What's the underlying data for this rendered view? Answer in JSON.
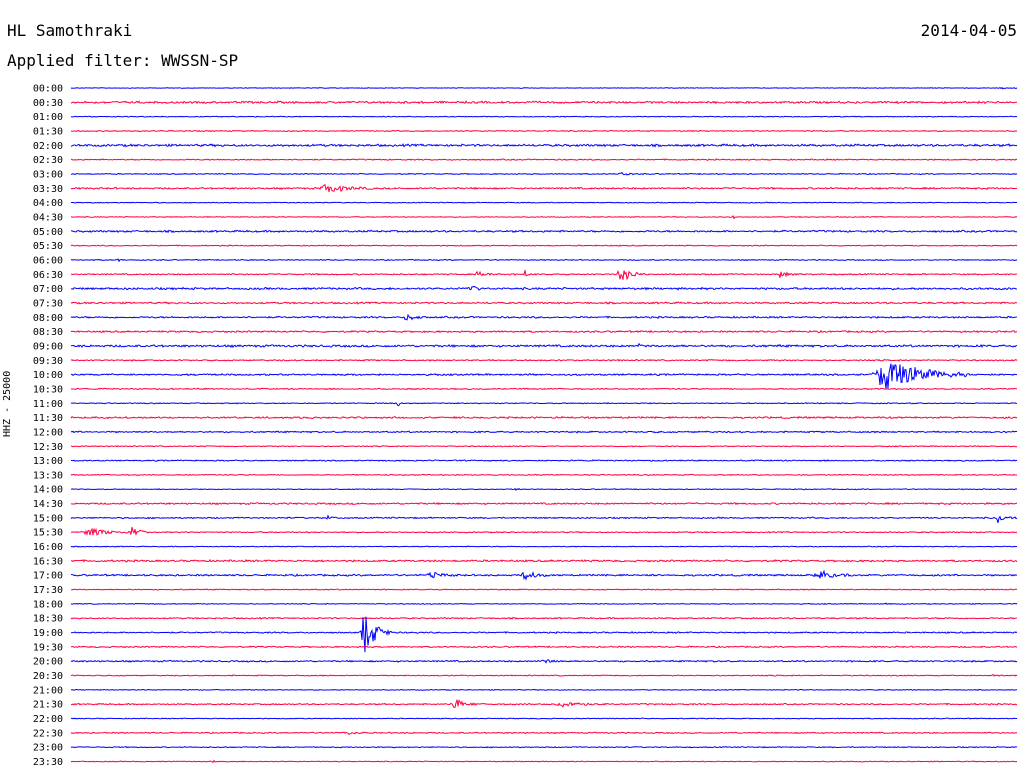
{
  "header": {
    "station": "HL Samothraki",
    "date": "2014-04-05",
    "filter": "Applied filter: WWSSN-SP"
  },
  "channel_label": "HHZ - 25000",
  "colors": {
    "blue": "#0000ff",
    "red": "#ff0040",
    "text": "#000000"
  },
  "chart_data": {
    "type": "seismogram-helicorder",
    "traces": [
      {
        "time": "00:00",
        "color": "blue",
        "noise": 0.4,
        "events": [
          {
            "x": 0.985,
            "amp": 1.5,
            "width": 0.02
          }
        ]
      },
      {
        "time": "00:30",
        "color": "red",
        "noise": 1.2,
        "events": []
      },
      {
        "time": "01:00",
        "color": "blue",
        "noise": 0.5,
        "events": []
      },
      {
        "time": "01:30",
        "color": "red",
        "noise": 0.6,
        "events": []
      },
      {
        "time": "02:00",
        "color": "blue",
        "noise": 1.3,
        "events": []
      },
      {
        "time": "02:30",
        "color": "red",
        "noise": 0.7,
        "events": []
      },
      {
        "time": "03:00",
        "color": "blue",
        "noise": 0.6,
        "events": [
          {
            "x": 0.58,
            "amp": 2.5,
            "width": 0.015
          }
        ]
      },
      {
        "time": "03:30",
        "color": "red",
        "noise": 1.0,
        "events": [
          {
            "x": 0.27,
            "amp": 6,
            "width": 0.05
          }
        ]
      },
      {
        "time": "04:00",
        "color": "blue",
        "noise": 0.5,
        "events": []
      },
      {
        "time": "04:30",
        "color": "red",
        "noise": 0.5,
        "events": [
          {
            "x": 0.7,
            "amp": 2,
            "width": 0.006
          }
        ]
      },
      {
        "time": "05:00",
        "color": "blue",
        "noise": 1.1,
        "events": []
      },
      {
        "time": "05:30",
        "color": "red",
        "noise": 0.6,
        "events": []
      },
      {
        "time": "06:00",
        "color": "blue",
        "noise": 0.6,
        "events": [
          {
            "x": 0.05,
            "amp": 2,
            "width": 0.006
          }
        ]
      },
      {
        "time": "06:30",
        "color": "red",
        "noise": 0.8,
        "events": [
          {
            "x": 0.43,
            "amp": 3,
            "width": 0.03
          },
          {
            "x": 0.48,
            "amp": 6,
            "width": 0.004
          },
          {
            "x": 0.58,
            "amp": 9,
            "width": 0.03
          },
          {
            "x": 0.75,
            "amp": 4,
            "width": 0.02
          }
        ]
      },
      {
        "time": "07:00",
        "color": "blue",
        "noise": 1.2,
        "events": [
          {
            "x": 0.42,
            "amp": 7,
            "width": 0.015
          }
        ]
      },
      {
        "time": "07:30",
        "color": "red",
        "noise": 1.0,
        "events": []
      },
      {
        "time": "08:00",
        "color": "blue",
        "noise": 1.0,
        "events": [
          {
            "x": 0.355,
            "amp": 5,
            "width": 0.02
          }
        ]
      },
      {
        "time": "08:30",
        "color": "red",
        "noise": 1.0,
        "events": []
      },
      {
        "time": "09:00",
        "color": "blue",
        "noise": 1.3,
        "events": [
          {
            "x": 0.6,
            "amp": 2,
            "width": 0.01
          }
        ]
      },
      {
        "time": "09:30",
        "color": "red",
        "noise": 0.8,
        "events": []
      },
      {
        "time": "10:00",
        "color": "blue",
        "noise": 1.0,
        "events": [
          {
            "x": 0.86,
            "amp": 24,
            "width": 0.09
          }
        ]
      },
      {
        "time": "10:30",
        "color": "red",
        "noise": 0.7,
        "events": []
      },
      {
        "time": "11:00",
        "color": "blue",
        "noise": 0.6,
        "events": [
          {
            "x": 0.345,
            "amp": 6,
            "width": 0.008
          }
        ]
      },
      {
        "time": "11:30",
        "color": "red",
        "noise": 1.0,
        "events": []
      },
      {
        "time": "12:00",
        "color": "blue",
        "noise": 0.9,
        "events": []
      },
      {
        "time": "12:30",
        "color": "red",
        "noise": 0.6,
        "events": []
      },
      {
        "time": "13:00",
        "color": "blue",
        "noise": 0.7,
        "events": []
      },
      {
        "time": "13:30",
        "color": "red",
        "noise": 0.6,
        "events": []
      },
      {
        "time": "14:00",
        "color": "blue",
        "noise": 0.5,
        "events": [
          {
            "x": 0.47,
            "amp": 1.5,
            "width": 0.01
          }
        ]
      },
      {
        "time": "14:30",
        "color": "red",
        "noise": 1.0,
        "events": []
      },
      {
        "time": "15:00",
        "color": "blue",
        "noise": 0.8,
        "events": [
          {
            "x": 0.27,
            "amp": 2,
            "width": 0.02
          },
          {
            "x": 0.98,
            "amp": 6,
            "width": 0.02
          }
        ]
      },
      {
        "time": "15:30",
        "color": "red",
        "noise": 0.7,
        "events": [
          {
            "x": 0.02,
            "amp": 6,
            "width": 0.05
          },
          {
            "x": 0.065,
            "amp": 7,
            "width": 0.02
          }
        ]
      },
      {
        "time": "16:00",
        "color": "blue",
        "noise": 0.5,
        "events": []
      },
      {
        "time": "16:30",
        "color": "red",
        "noise": 1.1,
        "events": []
      },
      {
        "time": "17:00",
        "color": "blue",
        "noise": 1.0,
        "events": [
          {
            "x": 0.38,
            "amp": 4,
            "width": 0.03
          },
          {
            "x": 0.48,
            "amp": 5,
            "width": 0.03
          },
          {
            "x": 0.79,
            "amp": 6,
            "width": 0.04
          }
        ]
      },
      {
        "time": "17:30",
        "color": "red",
        "noise": 0.6,
        "events": []
      },
      {
        "time": "18:00",
        "color": "blue",
        "noise": 0.5,
        "events": [
          {
            "x": 0.86,
            "amp": 1.5,
            "width": 0.01
          }
        ]
      },
      {
        "time": "18:30",
        "color": "red",
        "noise": 0.8,
        "events": []
      },
      {
        "time": "19:00",
        "color": "blue",
        "noise": 0.8,
        "events": [
          {
            "x": 0.31,
            "amp": 28,
            "width": 0.03
          }
        ]
      },
      {
        "time": "19:30",
        "color": "red",
        "noise": 0.8,
        "events": []
      },
      {
        "time": "20:00",
        "color": "blue",
        "noise": 0.9,
        "events": [
          {
            "x": 0.5,
            "amp": 3,
            "width": 0.02
          }
        ]
      },
      {
        "time": "20:30",
        "color": "red",
        "noise": 0.6,
        "events": [
          {
            "x": 0.975,
            "amp": 2,
            "width": 0.01
          }
        ]
      },
      {
        "time": "21:00",
        "color": "blue",
        "noise": 0.5,
        "events": []
      },
      {
        "time": "21:30",
        "color": "red",
        "noise": 0.8,
        "events": [
          {
            "x": 0.405,
            "amp": 7,
            "width": 0.025
          },
          {
            "x": 0.52,
            "amp": 4,
            "width": 0.05
          }
        ]
      },
      {
        "time": "22:00",
        "color": "blue",
        "noise": 0.5,
        "events": []
      },
      {
        "time": "22:30",
        "color": "red",
        "noise": 0.7,
        "events": [
          {
            "x": 0.29,
            "amp": 2,
            "width": 0.03
          }
        ]
      },
      {
        "time": "23:00",
        "color": "blue",
        "noise": 0.6,
        "events": []
      },
      {
        "time": "23:30",
        "color": "red",
        "noise": 0.5,
        "events": [
          {
            "x": 0.15,
            "amp": 2,
            "width": 0.004
          }
        ]
      }
    ]
  }
}
